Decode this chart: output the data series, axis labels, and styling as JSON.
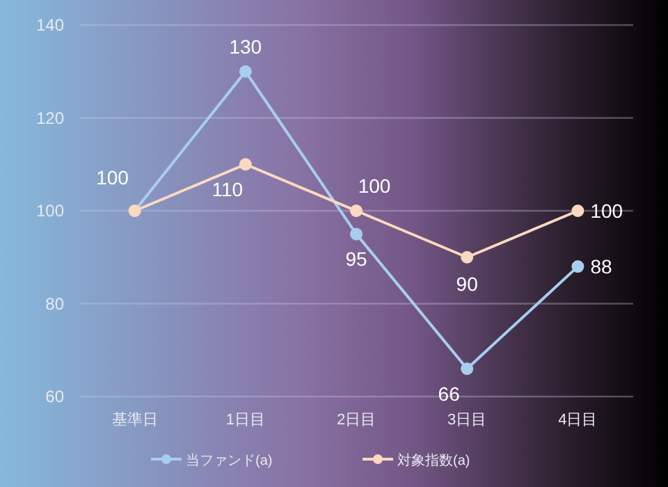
{
  "chart_data": {
    "type": "line",
    "categories": [
      "基準日",
      "1日目",
      "2日目",
      "3日目",
      "4日目"
    ],
    "series": [
      {
        "name": "当ファンド(a)",
        "color": "#a8cdef",
        "values": [
          100,
          130,
          95,
          66,
          88
        ],
        "value_labels": [
          "100",
          "130",
          "95",
          "66",
          "88"
        ]
      },
      {
        "name": "対象指数(a)",
        "color": "#fbd8c0",
        "values": [
          100,
          110,
          100,
          90,
          100
        ],
        "value_labels": [
          null,
          "110",
          "100",
          "90",
          "100"
        ]
      }
    ],
    "ylim": [
      60,
      140
    ],
    "yticks": [
      60,
      80,
      100,
      120,
      140
    ],
    "grid": "y",
    "legend": "bottom",
    "marker": "circle",
    "line_style": "solid"
  }
}
